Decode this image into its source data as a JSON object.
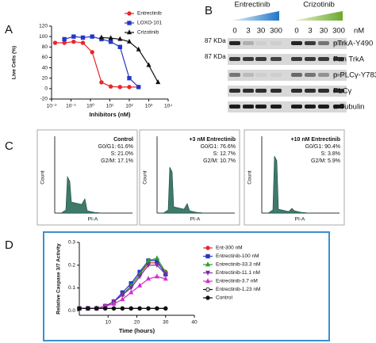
{
  "panel_labels": [
    "A",
    "B",
    "C",
    "D"
  ],
  "chart_data": [
    {
      "type": "line",
      "xlabel": "Inhibitors (nM)",
      "ylabel": "Live Cells (%)",
      "log_x": true,
      "legend": "upper-right",
      "xlim": [
        0.01,
        10000
      ],
      "xticks": [
        {
          "value": 0.01,
          "label": "10⁻²"
        },
        {
          "value": 0.1,
          "label": "10⁻¹"
        },
        {
          "value": 1,
          "label": "10⁰"
        },
        {
          "value": 10,
          "label": "10¹"
        },
        {
          "value": 100,
          "label": "10²"
        },
        {
          "value": 1000,
          "label": "10³"
        },
        {
          "value": 10000,
          "label": "10⁴"
        }
      ],
      "ylim": [
        -20,
        120
      ],
      "yticks": [
        -20,
        0,
        20,
        40,
        60,
        80,
        100,
        120
      ],
      "series": [
        {
          "name": "Entrectinib",
          "color": "#e8262a",
          "marker": "circle",
          "x": [
            0.0152,
            0.0457,
            0.137,
            0.41,
            1.23,
            3.7,
            11.1,
            33.3,
            100,
            300
          ],
          "values": [
            88,
            88,
            90,
            88,
            70,
            12,
            4,
            3,
            3,
            3
          ]
        },
        {
          "name": "LOXO-101",
          "color": "#2437c8",
          "marker": "square",
          "x": [
            0.0457,
            0.137,
            0.41,
            1.23,
            3.7,
            11.1,
            33.3,
            100,
            300
          ],
          "values": [
            95,
            100,
            98,
            100,
            95,
            90,
            80,
            20,
            3
          ]
        },
        {
          "name": "Crizotinib",
          "color": "#111111",
          "marker": "triangle",
          "x": [
            3.7,
            11.1,
            33.3,
            100,
            300,
            1000,
            3000
          ],
          "values": [
            98,
            97,
            95,
            90,
            75,
            45,
            12
          ]
        }
      ]
    },
    {
      "type": "line",
      "xlabel": "Time (hours)",
      "ylabel": "Relative Caspase 3/7 Activity",
      "legend": "right",
      "xlim": [
        0,
        40
      ],
      "xticks": [
        10,
        20,
        30,
        40
      ],
      "ylim": [
        -0.02,
        0.3
      ],
      "yticks": [
        {
          "value": 0,
          "label": "0.0"
        },
        0.1,
        0.2,
        0.3
      ],
      "x": [
        0,
        3,
        6,
        9,
        12,
        15,
        18,
        21,
        24,
        27,
        30
      ],
      "series": [
        {
          "name": "Ent-300 nM",
          "color": "#e8262a",
          "marker": "circle",
          "values": [
            0.01,
            0.01,
            0.01,
            0.02,
            0.04,
            0.07,
            0.11,
            0.16,
            0.21,
            0.21,
            0.17
          ]
        },
        {
          "name": "Entrectinib-100 nM",
          "color": "#2437c8",
          "marker": "square",
          "values": [
            0.01,
            0.01,
            0.01,
            0.02,
            0.04,
            0.08,
            0.12,
            0.17,
            0.22,
            0.22,
            0.16
          ]
        },
        {
          "name": "Entrectinib-33.3 nM",
          "color": "#2aa02a",
          "marker": "triangle",
          "values": [
            0.01,
            0.01,
            0.01,
            0.02,
            0.04,
            0.07,
            0.11,
            0.16,
            0.22,
            0.23,
            0.17
          ]
        },
        {
          "name": "Entrectinib-11.1 nM",
          "color": "#7a2ca0",
          "marker": "triangle-down",
          "values": [
            0.01,
            0.01,
            0.01,
            0.02,
            0.04,
            0.07,
            0.1,
            0.15,
            0.2,
            0.2,
            0.16
          ]
        },
        {
          "name": "Entrectinib-3.7 nM",
          "color": "#d62ad0",
          "marker": "triangle",
          "values": [
            0.01,
            0.01,
            0.01,
            0.02,
            0.03,
            0.05,
            0.08,
            0.11,
            0.14,
            0.15,
            0.14
          ]
        },
        {
          "name": "Entrectinib-1.23 nM",
          "color": "#111111",
          "marker": "open-circle",
          "values": [
            0.01,
            0.01,
            0.01,
            0.01,
            0.01,
            0.01,
            0.01,
            0.01,
            0.01,
            0.01,
            0.01
          ]
        },
        {
          "name": "Control",
          "color": "#111111",
          "marker": "circle",
          "values": [
            0.01,
            0.01,
            0.01,
            0.01,
            0.01,
            0.01,
            0.01,
            0.01,
            0.01,
            0.01,
            0.01
          ]
        }
      ]
    }
  ],
  "blot": {
    "drugs": [
      "Entrectinib",
      "Crizotinib"
    ],
    "doses": [
      "0",
      "3",
      "30",
      "300"
    ],
    "unit": "nM",
    "markers": [
      "87 KDa",
      "87 KDa"
    ],
    "proteins": [
      "pTrkA-Y490",
      "Pan TrkA",
      "p-PLCγ-Y783",
      "PLCγ",
      "α-Tubulin"
    ]
  },
  "flow": {
    "axes": {
      "y": "Count",
      "x": "PI-A"
    },
    "panels": [
      {
        "title": "Control",
        "lines": [
          "G0/G1: 61.6%",
          "S: 21.0%",
          "G2/M: 17.1%"
        ]
      },
      {
        "title": "+3 nM Entrectinib",
        "lines": [
          "G0/G1: 76.6%",
          "S: 12.7%",
          "G2/M: 10.7%"
        ]
      },
      {
        "title": "+10 nM Entrectinib",
        "lines": [
          "G0/G1: 90.4%",
          "S: 3.8%",
          "G2/M: 5.9%"
        ]
      }
    ]
  }
}
